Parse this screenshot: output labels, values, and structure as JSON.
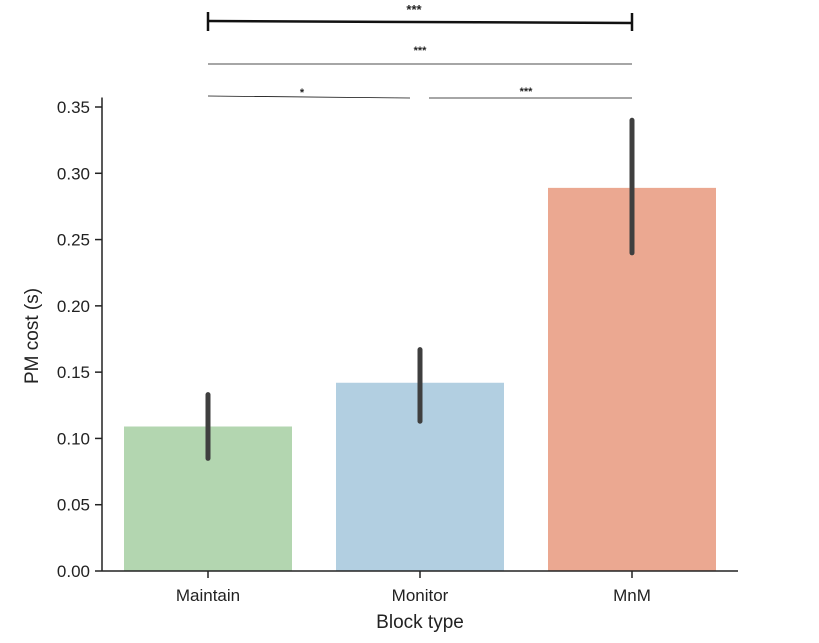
{
  "chart_data": {
    "type": "bar",
    "xlabel": "Block type",
    "ylabel": "PM cost (s)",
    "ylim": [
      0,
      0.355
    ],
    "yticks": [
      "0.00",
      "0.05",
      "0.10",
      "0.15",
      "0.20",
      "0.25",
      "0.30",
      "0.35"
    ],
    "categories": [
      "Maintain",
      "Monitor",
      "MnM"
    ],
    "values": [
      0.109,
      0.142,
      0.289
    ],
    "error_low": [
      0.085,
      0.113,
      0.24
    ],
    "error_high": [
      0.133,
      0.167,
      0.34
    ],
    "colors": [
      "#b3d6b0",
      "#b2cfe1",
      "#eba891"
    ],
    "error_color": "#3f3f3f",
    "grid": false,
    "significance": [
      {
        "from": 0,
        "to": 2,
        "label": "***"
      },
      {
        "from": 0,
        "to": 2,
        "label": "***"
      },
      {
        "from": 0,
        "to": 1,
        "label": "*"
      },
      {
        "from": 1,
        "to": 2,
        "label": "***"
      }
    ]
  }
}
